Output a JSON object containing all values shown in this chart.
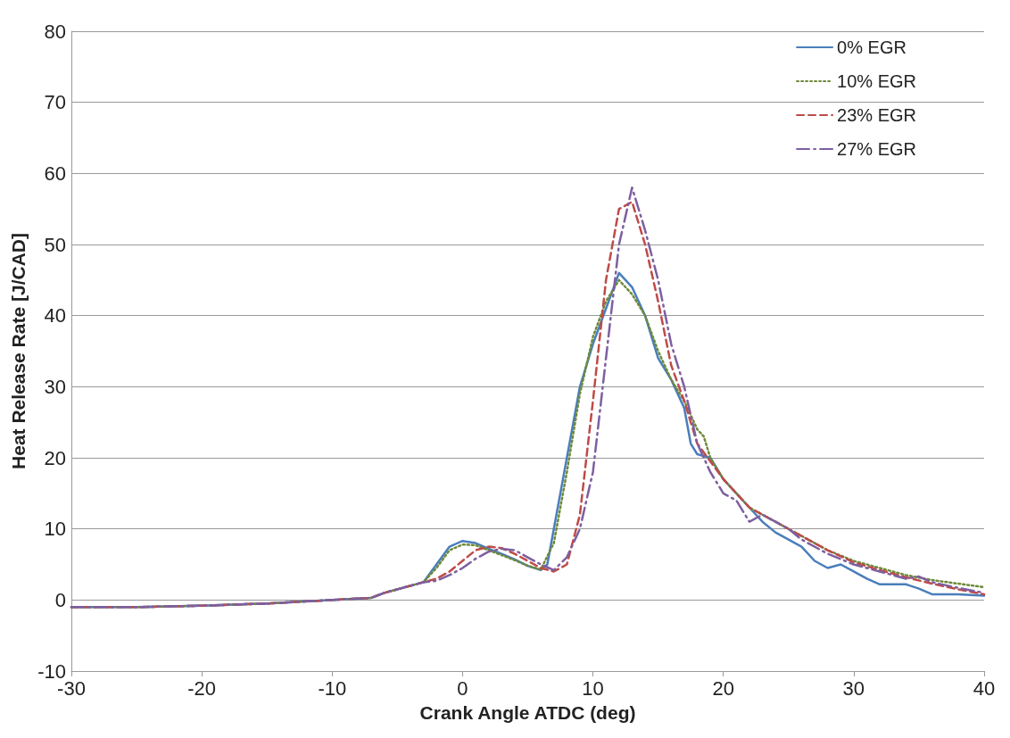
{
  "chart_data": {
    "type": "line",
    "xlabel": "Crank Angle ATDC (deg)",
    "ylabel": "Heat Release Rate [J/CAD]",
    "xlim": [
      -30,
      40
    ],
    "xticks": [
      -30,
      -20,
      -10,
      0,
      10,
      20,
      30,
      40
    ],
    "ylim": [
      -10,
      80
    ],
    "yticks": [
      -10,
      0,
      10,
      20,
      30,
      40,
      50,
      60,
      70,
      80
    ],
    "grid": "y",
    "legend": "top right",
    "marker": "none",
    "series": [
      {
        "name": "0% EGR",
        "color": "#4a7ebb",
        "line_style": "solid",
        "x": [
          -30,
          -25,
          -20,
          -15,
          -10,
          -7,
          -6,
          -5,
          -3,
          -2,
          -1,
          0,
          1,
          2,
          3,
          4,
          5,
          6,
          6.5,
          7,
          8,
          9,
          10,
          11,
          12,
          13,
          14,
          15,
          16,
          17,
          17.5,
          18,
          19,
          20,
          21,
          22,
          23,
          24,
          25,
          26,
          27,
          28,
          29,
          30,
          31,
          32,
          34,
          35,
          36,
          38,
          40
        ],
        "values": [
          -1,
          -1,
          -0.8,
          -0.5,
          0,
          0.3,
          1,
          1.5,
          2.5,
          5,
          7.5,
          8.3,
          8,
          7.2,
          6.5,
          5.7,
          4.8,
          4.2,
          5,
          10,
          20,
          30,
          36,
          41,
          46,
          44,
          40,
          34,
          31,
          27,
          22,
          20.5,
          20,
          17,
          15,
          13,
          11,
          9.5,
          8.5,
          7.5,
          5.5,
          4.5,
          5,
          4,
          3,
          2.2,
          2.2,
          1.6,
          0.8,
          0.8,
          0.6
        ]
      },
      {
        "name": "10% EGR",
        "color": "#6e8a3a",
        "line_style": "dotted",
        "x": [
          -30,
          -25,
          -20,
          -15,
          -10,
          -7,
          -6,
          -5,
          -3,
          -2,
          -1,
          0,
          1,
          2,
          3,
          4,
          5,
          6,
          7,
          8,
          9,
          10,
          11,
          12,
          13,
          14,
          15,
          16,
          17,
          18,
          18.5,
          19,
          20,
          21,
          22,
          24,
          26,
          28,
          30,
          32,
          34,
          36,
          38,
          40
        ],
        "values": [
          -1,
          -1,
          -0.8,
          -0.5,
          0,
          0.3,
          1,
          1.5,
          2.5,
          4.5,
          7,
          7.8,
          7.7,
          7,
          6.3,
          5.6,
          4.8,
          4.3,
          8,
          18,
          29,
          37,
          42,
          45,
          43,
          40,
          35,
          31,
          28,
          24,
          23,
          20,
          17,
          15,
          13,
          11,
          9,
          7,
          5.5,
          4.5,
          3.5,
          2.8,
          2.3,
          1.8
        ]
      },
      {
        "name": "23% EGR",
        "color": "#be4b48",
        "line_style": "dashed",
        "x": [
          -30,
          -25,
          -20,
          -15,
          -10,
          -7,
          -6,
          -5,
          -3,
          -2,
          -1,
          0,
          1,
          2,
          3,
          4,
          5,
          6,
          7,
          8,
          9,
          10,
          11,
          12,
          13,
          14,
          15,
          16,
          17,
          18,
          19,
          20,
          21,
          22,
          24,
          26,
          28,
          30,
          32,
          34,
          36,
          38,
          40
        ],
        "values": [
          -1,
          -1,
          -0.8,
          -0.5,
          0,
          0.3,
          1,
          1.5,
          2.5,
          3,
          4,
          5.5,
          7,
          7.5,
          7.3,
          6.5,
          5.5,
          4.5,
          4,
          5,
          12,
          28,
          45,
          55,
          56,
          50,
          42,
          33,
          28,
          22,
          19.5,
          17,
          15,
          13,
          11,
          9,
          7,
          5.3,
          4.2,
          3.2,
          2.3,
          1.5,
          0.8
        ]
      },
      {
        "name": "27% EGR",
        "color": "#7d5fa0",
        "line_style": "dashdot",
        "x": [
          -30,
          -25,
          -20,
          -15,
          -10,
          -7,
          -6,
          -5,
          -3,
          -2,
          -1,
          0,
          1,
          2,
          3,
          4,
          5,
          6,
          7,
          8,
          9,
          10,
          11,
          12,
          13,
          14,
          15,
          16,
          17,
          18,
          19,
          20,
          21,
          22,
          23,
          24,
          25,
          26,
          28,
          30,
          32,
          34,
          35,
          36,
          38,
          40
        ],
        "values": [
          -1,
          -1,
          -0.8,
          -0.5,
          0,
          0.3,
          1,
          1.5,
          2.5,
          2.7,
          3.5,
          4.5,
          5.8,
          6.8,
          7.2,
          7,
          6,
          5,
          4.2,
          6,
          10,
          18,
          34,
          50,
          58,
          52,
          45,
          36,
          30,
          22,
          18,
          15,
          14,
          11,
          12,
          11,
          10,
          8.5,
          6.5,
          5,
          4,
          3,
          3.3,
          2.5,
          1.7,
          1
        ]
      }
    ]
  }
}
